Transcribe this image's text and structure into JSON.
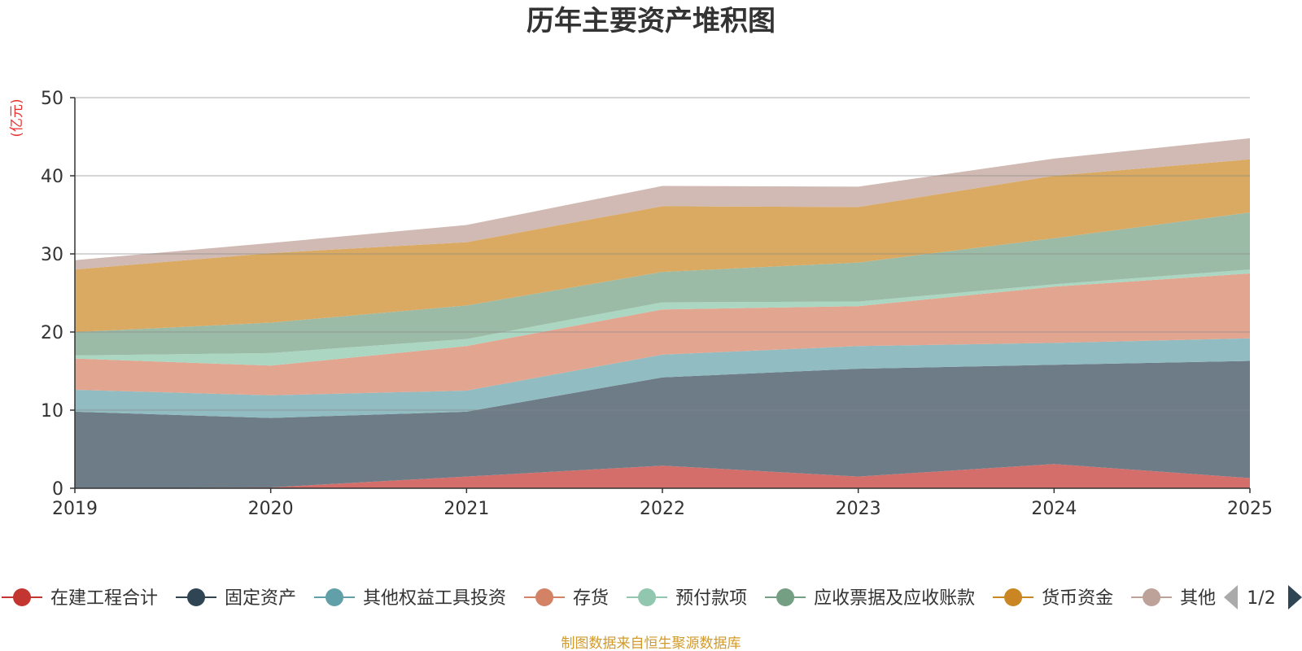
{
  "chart_data": {
    "type": "area",
    "stacked": true,
    "title": "历年主要资产堆积图",
    "ylabel": "(亿元)",
    "ylim": [
      0,
      50
    ],
    "yticks": [
      0,
      10,
      20,
      30,
      40,
      50
    ],
    "categories": [
      "2019",
      "2020",
      "2021",
      "2022",
      "2023",
      "2024",
      "2025"
    ],
    "series": [
      {
        "name": "在建工程合计",
        "color": "#c23531",
        "fill": "#d46e6b",
        "values": [
          0.0,
          0.1,
          1.5,
          2.9,
          1.5,
          3.1,
          1.3
        ]
      },
      {
        "name": "固定资产",
        "color": "#2f4554",
        "fill": "#6e7c87",
        "values": [
          9.8,
          8.9,
          8.3,
          11.3,
          13.8,
          12.7,
          15.0
        ]
      },
      {
        "name": "其他权益工具投资",
        "color": "#61a0a8",
        "fill": "#90bcc2",
        "values": [
          2.8,
          2.9,
          2.7,
          2.9,
          2.9,
          2.8,
          2.9
        ]
      },
      {
        "name": "存货",
        "color": "#d48265",
        "fill": "#e2a590",
        "values": [
          4.0,
          3.8,
          5.7,
          5.8,
          5.1,
          7.2,
          8.3
        ]
      },
      {
        "name": "预付款项",
        "color": "#91c7ae",
        "fill": "#aad6c2",
        "values": [
          0.4,
          1.6,
          0.9,
          0.9,
          0.6,
          0.3,
          0.5
        ]
      },
      {
        "name": "应收票据及应收账款",
        "color": "#749f83",
        "fill": "#9cbba6",
        "values": [
          3.0,
          3.9,
          4.3,
          3.9,
          5.0,
          5.9,
          7.3
        ]
      },
      {
        "name": "货币资金",
        "color": "#ca8622",
        "fill": "#daa962",
        "values": [
          8.0,
          8.9,
          8.1,
          8.4,
          7.1,
          8.0,
          6.8
        ]
      },
      {
        "name": "其他",
        "color": "#bda29a",
        "fill": "#d0bab3",
        "values": [
          1.2,
          1.3,
          2.2,
          2.6,
          2.6,
          2.2,
          2.7
        ]
      }
    ],
    "legend": {
      "position": "bottom",
      "page": "1/2"
    },
    "grid": true
  },
  "source_note": "制图数据来自恒生聚源数据库"
}
